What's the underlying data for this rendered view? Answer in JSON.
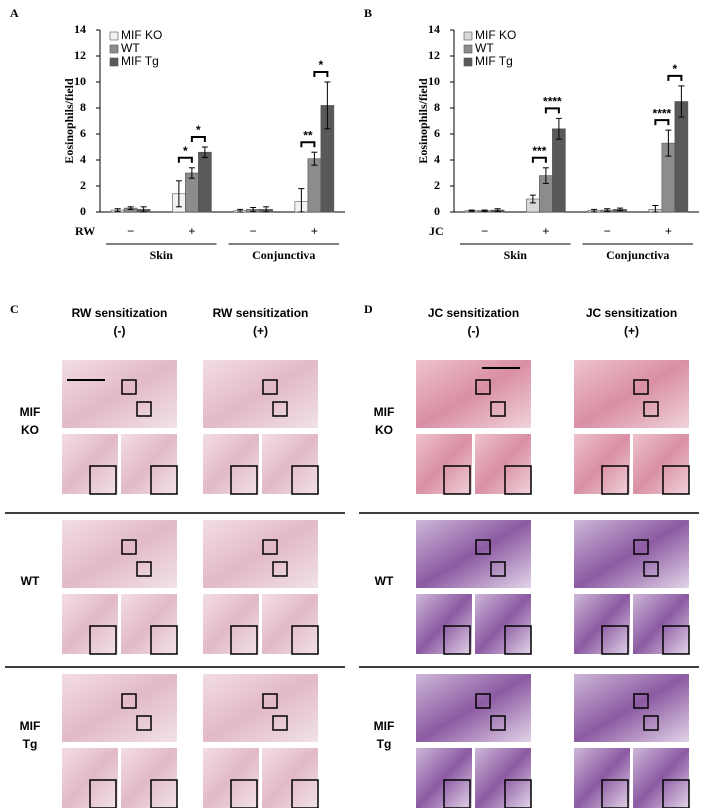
{
  "chart_data": [
    {
      "type": "bar",
      "panel": "A",
      "ylabel": "Eosinophils/field",
      "row_label": "RW",
      "groups": [
        {
          "label": "Skin",
          "categories": [
            "−",
            "+"
          ]
        },
        {
          "label": "Conjunctiva",
          "categories": [
            "−",
            "+"
          ]
        }
      ],
      "series": [
        {
          "name": "MIF KO",
          "color": "#f2f2f2",
          "values": [
            0.15,
            1.4,
            0.1,
            0.8
          ],
          "errors": [
            0.1,
            1.0,
            0.1,
            1.0
          ]
        },
        {
          "name": "WT",
          "color": "#8c8c8c",
          "values": [
            0.3,
            3.0,
            0.2,
            4.1
          ],
          "errors": [
            0.1,
            0.4,
            0.15,
            0.5
          ]
        },
        {
          "name": "MIF Tg",
          "color": "#595959",
          "values": [
            0.2,
            4.6,
            0.2,
            8.2
          ],
          "errors": [
            0.2,
            0.4,
            0.2,
            1.8
          ]
        }
      ],
      "significance": [
        null,
        [
          "*",
          "*"
        ],
        null,
        [
          "**",
          "*"
        ]
      ],
      "ylim": [
        0,
        14
      ],
      "yticks": [
        0,
        2,
        4,
        6,
        8,
        10,
        12,
        14
      ]
    },
    {
      "type": "bar",
      "panel": "B",
      "ylabel": "Eosinophils/field",
      "row_label": "JC",
      "groups": [
        {
          "label": "Skin",
          "categories": [
            "−",
            "+"
          ]
        },
        {
          "label": "Conjunctiva",
          "categories": [
            "−",
            "+"
          ]
        }
      ],
      "series": [
        {
          "name": "MIF KO",
          "color": "#d9d9d9",
          "values": [
            0.1,
            1.0,
            0.1,
            0.2
          ],
          "errors": [
            0.05,
            0.3,
            0.1,
            0.3
          ]
        },
        {
          "name": "WT",
          "color": "#8c8c8c",
          "values": [
            0.1,
            2.8,
            0.15,
            5.3
          ],
          "errors": [
            0.05,
            0.6,
            0.1,
            1.0
          ]
        },
        {
          "name": "MIF Tg",
          "color": "#595959",
          "values": [
            0.15,
            6.4,
            0.2,
            8.5
          ],
          "errors": [
            0.1,
            0.8,
            0.1,
            1.2
          ]
        }
      ],
      "significance": [
        null,
        [
          "***",
          "****"
        ],
        null,
        [
          "****",
          "*"
        ]
      ],
      "ylim": [
        0,
        14
      ],
      "yticks": [
        0,
        2,
        4,
        6,
        8,
        10,
        12,
        14
      ]
    }
  ],
  "panels": [
    {
      "letter": "C",
      "columns": [
        [
          "RW sensitization",
          "(-)"
        ],
        [
          "RW sensitization",
          "(+)"
        ]
      ],
      "rows": [
        [
          "MIF",
          "KO"
        ],
        [
          "WT"
        ],
        [
          "MIF",
          "Tg"
        ]
      ]
    },
    {
      "letter": "D",
      "columns": [
        [
          "JC sensitization",
          "(-)"
        ],
        [
          "JC sensitization",
          "(+)"
        ]
      ],
      "rows": [
        [
          "MIF",
          "KO"
        ],
        [
          "WT"
        ],
        [
          "MIF",
          "Tg"
        ]
      ]
    }
  ]
}
